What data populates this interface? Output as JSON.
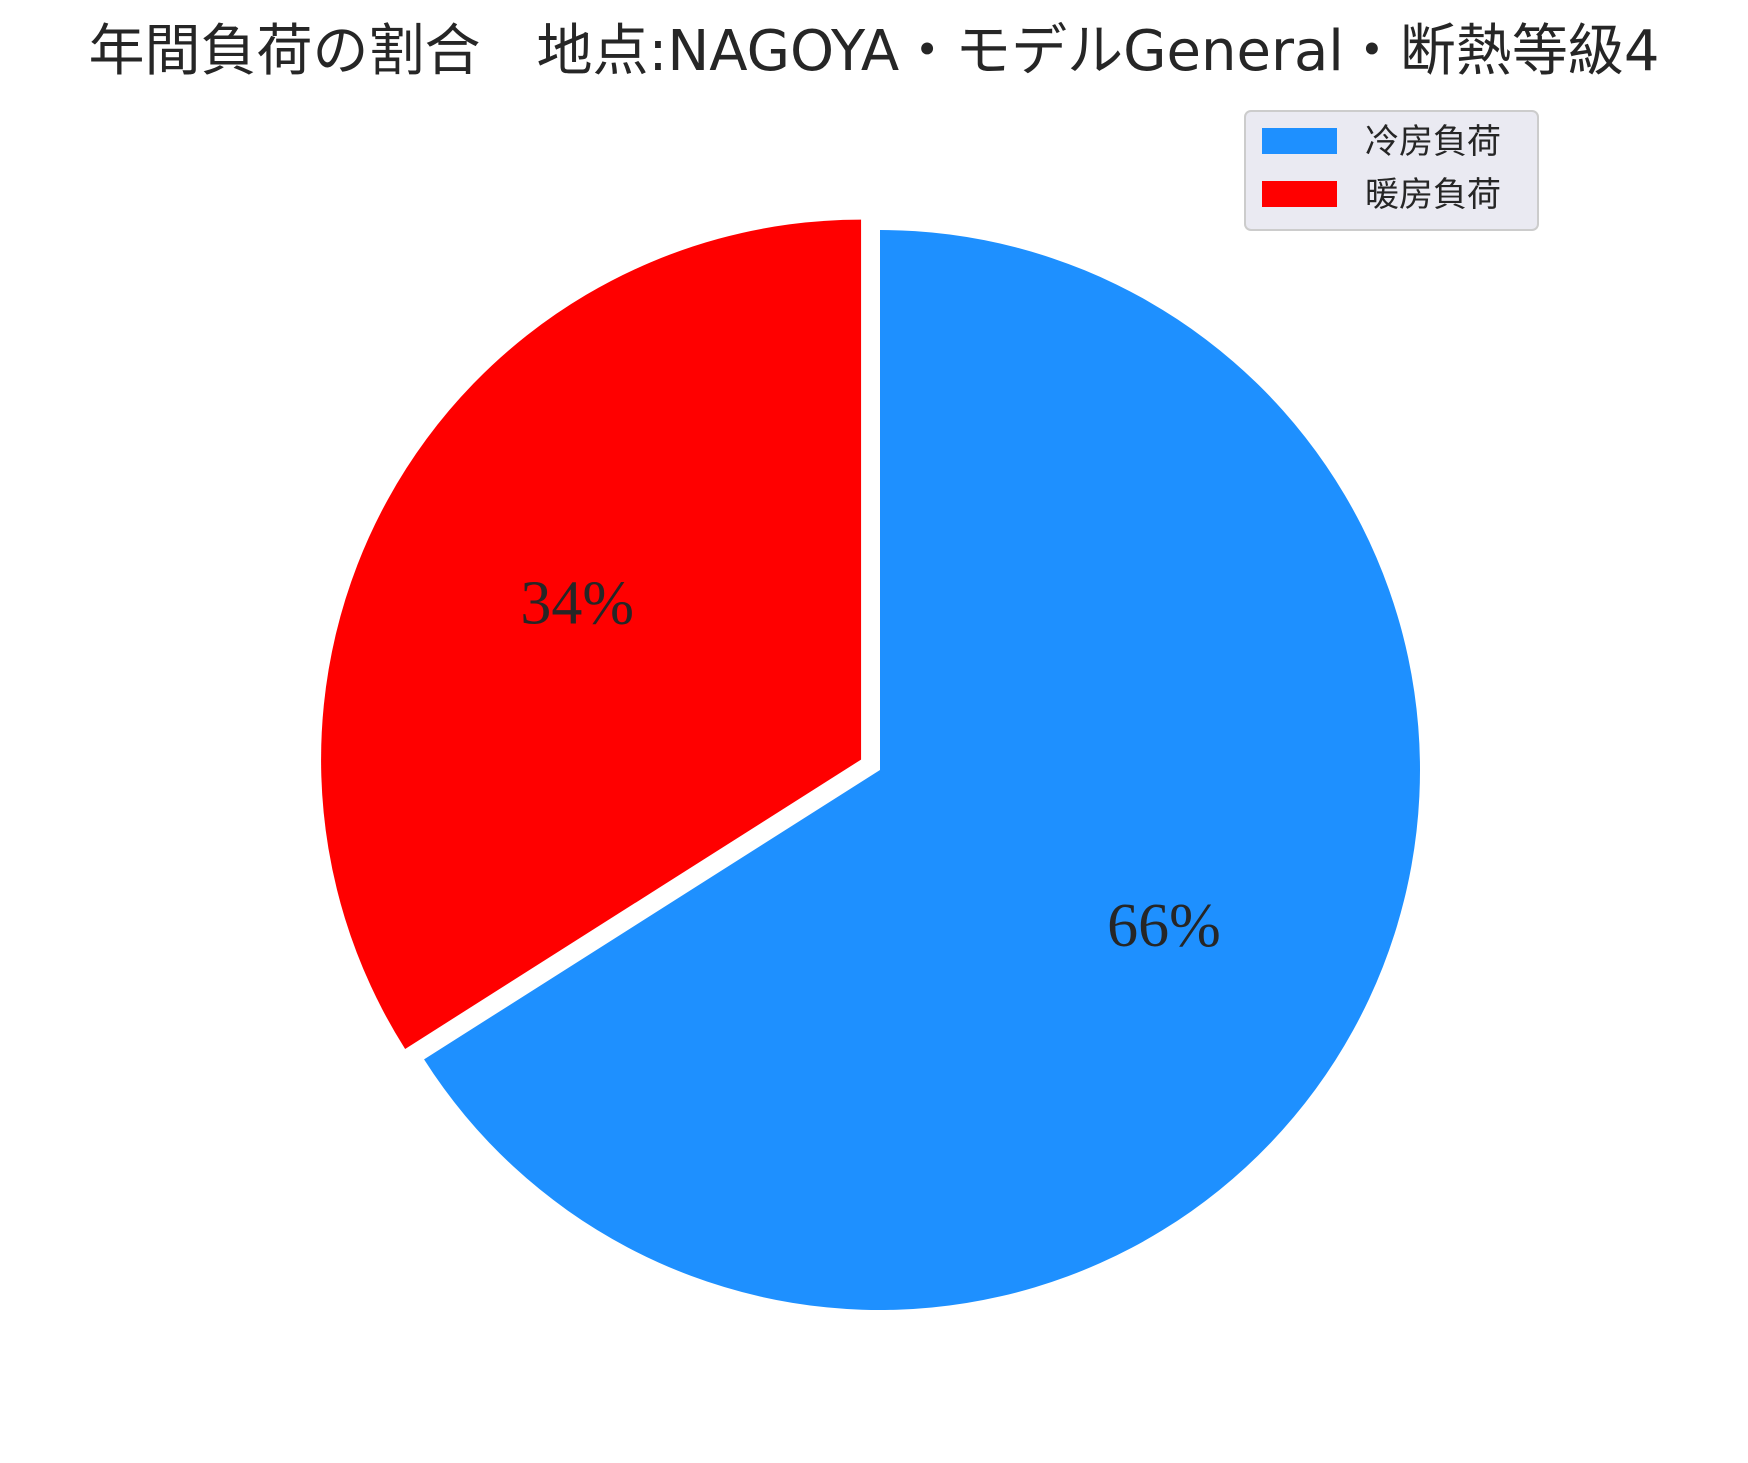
{
  "chart_data": {
    "type": "pie",
    "title": "年間負荷の割合　地点:NAGOYA・モデルGeneral・断熱等級4",
    "start_angle_deg": 90,
    "direction": "clockwise",
    "slices": [
      {
        "label": "冷房負荷",
        "value": 66,
        "pct_label": "66%",
        "color": "#1e90ff",
        "explode": 0
      },
      {
        "label": "暖房負荷",
        "value": 34,
        "pct_label": "34%",
        "color": "#ff0000",
        "explode": 0.04
      }
    ],
    "legend": {
      "placement": "top-right",
      "entries": [
        "冷房負荷",
        "暖房負荷"
      ]
    }
  }
}
